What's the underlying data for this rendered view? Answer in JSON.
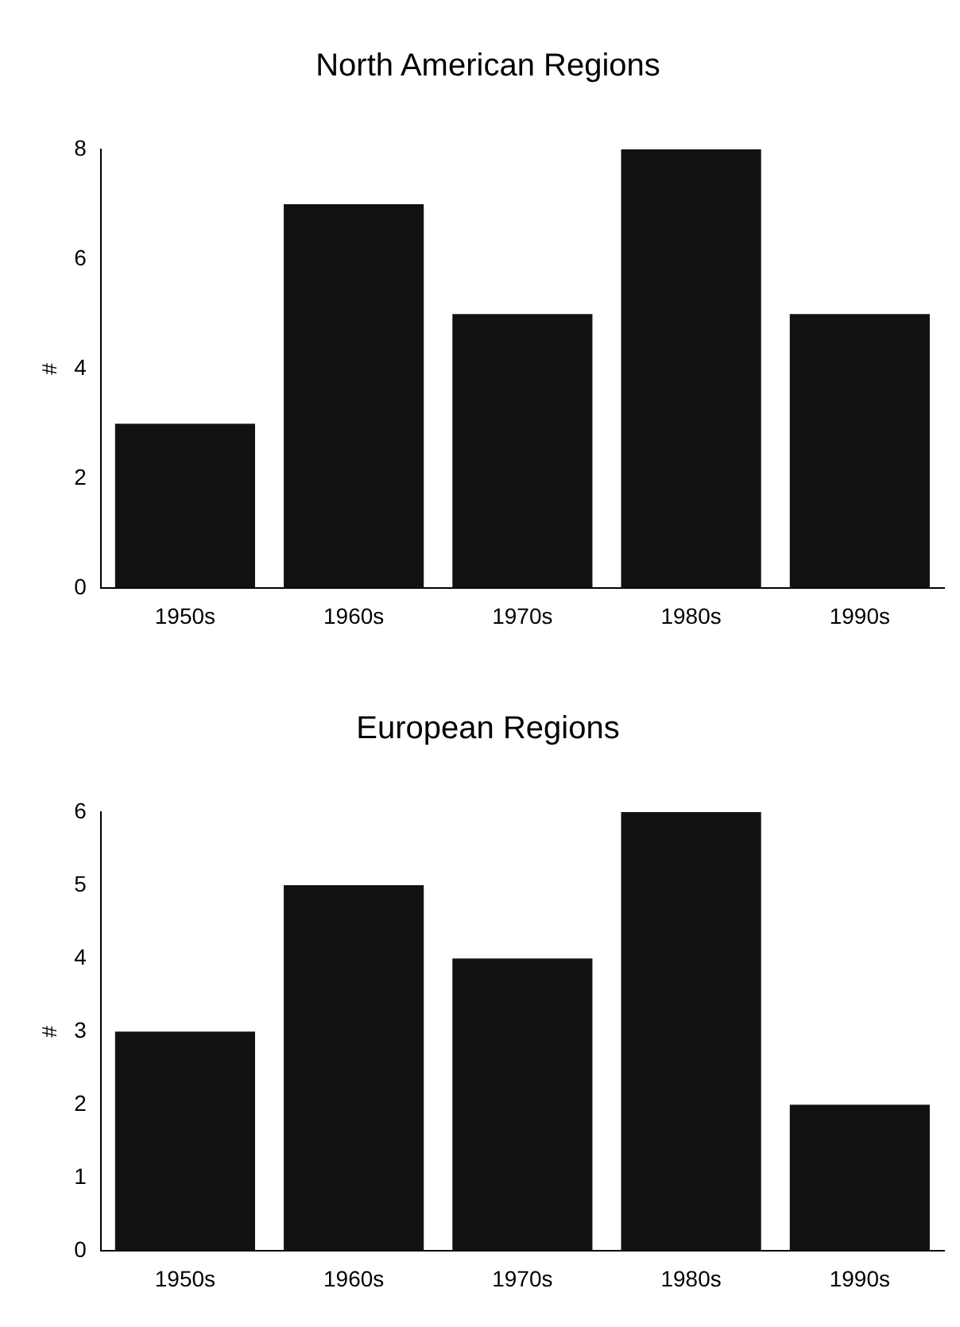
{
  "chart_data": [
    {
      "type": "bar",
      "title": "North American Regions",
      "ylabel": "#",
      "categories": [
        "1950s",
        "1960s",
        "1970s",
        "1980s",
        "1990s"
      ],
      "values": [
        3,
        7,
        5,
        8,
        5
      ],
      "color": "#111111",
      "ylim": [
        0,
        8
      ],
      "yticks": [
        0,
        2,
        4,
        6,
        8
      ],
      "grid": false
    },
    {
      "type": "bar",
      "title": "European Regions",
      "ylabel": "#",
      "categories": [
        "1950s",
        "1960s",
        "1970s",
        "1980s",
        "1990s"
      ],
      "values": [
        3,
        5,
        4,
        6,
        2
      ],
      "color": "#111111",
      "ylim": [
        0,
        6
      ],
      "yticks": [
        0,
        1,
        2,
        3,
        4,
        5,
        6
      ],
      "grid": false
    }
  ]
}
